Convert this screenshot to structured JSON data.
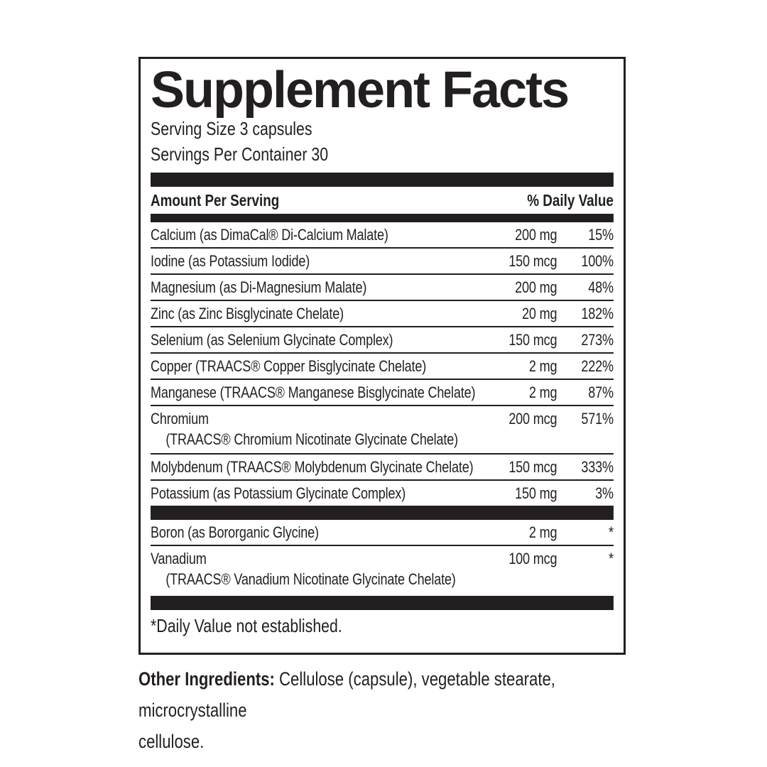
{
  "colors": {
    "ink": "#231f20",
    "background": "#ffffff"
  },
  "label": {
    "title": "Supplement Facts",
    "serving_size": "Serving Size 3 capsules",
    "servings_per_container": "Servings Per Container 30",
    "header": {
      "amount_per_serving": "Amount Per Serving",
      "daily_value": "% Daily Value"
    },
    "rows": [
      {
        "name": "Calcium (as DimaCal® Di-Calcium Malate)",
        "amount": "200 mg",
        "dv": "15%"
      },
      {
        "name": "Iodine (as Potassium Iodide)",
        "amount": "150 mcg",
        "dv": "100%"
      },
      {
        "name": "Magnesium (as Di-Magnesium Malate)",
        "amount": "200 mg",
        "dv": "48%"
      },
      {
        "name": "Zinc (as Zinc Bisglycinate Chelate)",
        "amount": "20 mg",
        "dv": "182%"
      },
      {
        "name": "Selenium (as Selenium Glycinate Complex)",
        "amount": "150 mcg",
        "dv": "273%"
      },
      {
        "name": "Copper (TRAACS® Copper Bisglycinate Chelate)",
        "amount": "2 mg",
        "dv": "222%"
      },
      {
        "name": "Manganese (TRAACS® Manganese Bisglycinate Chelate)",
        "amount": "2 mg",
        "dv": "87%"
      },
      {
        "name": "Chromium",
        "sub": "(TRAACS® Chromium Nicotinate Glycinate Chelate)",
        "amount": "200 mcg",
        "dv": "571%"
      },
      {
        "name": "Molybdenum (TRAACS® Molybdenum Glycinate Chelate)",
        "amount": "150 mcg",
        "dv": "333%"
      },
      {
        "name": "Potassium (as Potassium Glycinate Complex)",
        "amount": "150 mg",
        "dv": "3%"
      },
      {
        "name": "Boron (as Bororganic Glycine)",
        "amount": "2 mg",
        "dv": "*"
      },
      {
        "name": "Vanadium",
        "sub": "(TRAACS® Vanadium Nicotinate Glycinate Chelate)",
        "amount": "100 mcg",
        "dv": "*"
      }
    ],
    "footnote": "*Daily Value not established."
  },
  "other_ingredients": {
    "label": "Other Ingredients:",
    "lines": [
      " Cellulose (capsule), vegetable stearate, microcrystalline",
      "cellulose."
    ]
  }
}
